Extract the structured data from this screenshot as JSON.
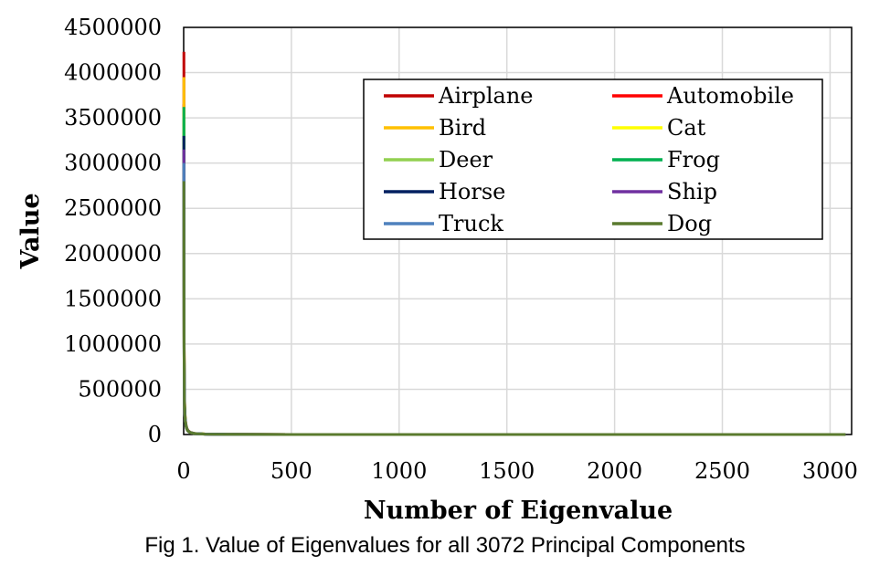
{
  "caption": "Fig 1. Value of Eigenvalues for all 3072 Principal Components",
  "chart_data": {
    "type": "line",
    "title": "",
    "xlabel": "Number of Eigenvalue",
    "ylabel": "Value",
    "xlim": [
      0,
      3100
    ],
    "ylim": [
      0,
      4500000
    ],
    "xticks": [
      0,
      500,
      1000,
      1500,
      2000,
      2500,
      3000
    ],
    "yticks": [
      0,
      500000,
      1000000,
      1500000,
      2000000,
      2500000,
      3000000,
      3500000,
      4000000,
      4500000
    ],
    "grid": true,
    "legend_position": "top-right",
    "x": [
      1,
      2,
      3,
      4,
      5,
      7,
      10,
      15,
      20,
      30,
      50,
      100,
      200,
      500,
      1000,
      2000,
      3072
    ],
    "series": [
      {
        "name": "Airplane",
        "color": "#C00000",
        "values": [
          4230000,
          1100000,
          620000,
          400000,
          300000,
          190000,
          120000,
          70000,
          45000,
          25000,
          12000,
          5000,
          2000,
          600,
          200,
          60,
          20
        ]
      },
      {
        "name": "Automobile",
        "color": "#FF0000",
        "values": [
          3650000,
          1000000,
          560000,
          370000,
          280000,
          180000,
          110000,
          65000,
          42000,
          23000,
          11000,
          4500,
          1800,
          550,
          180,
          55,
          18
        ]
      },
      {
        "name": "Bird",
        "color": "#FFC000",
        "values": [
          3950000,
          1050000,
          590000,
          390000,
          290000,
          185000,
          115000,
          68000,
          44000,
          24000,
          11500,
          4800,
          1900,
          580,
          190,
          58,
          19
        ]
      },
      {
        "name": "Cat",
        "color": "#FFFF00",
        "values": [
          3600000,
          980000,
          550000,
          360000,
          275000,
          175000,
          108000,
          63000,
          41000,
          22500,
          10800,
          4400,
          1750,
          540,
          175,
          54,
          17
        ]
      },
      {
        "name": "Deer",
        "color": "#92D050",
        "values": [
          3500000,
          950000,
          540000,
          350000,
          270000,
          170000,
          105000,
          62000,
          40000,
          22000,
          10500,
          4300,
          1700,
          520,
          170,
          52,
          17
        ]
      },
      {
        "name": "Frog",
        "color": "#00B050",
        "values": [
          3620000,
          990000,
          555000,
          365000,
          278000,
          178000,
          109000,
          64000,
          41500,
          22800,
          10900,
          4450,
          1780,
          545,
          178,
          55,
          18
        ]
      },
      {
        "name": "Horse",
        "color": "#002060",
        "values": [
          3300000,
          920000,
          520000,
          340000,
          260000,
          165000,
          102000,
          60000,
          39000,
          21500,
          10200,
          4200,
          1650,
          510,
          165,
          50,
          16
        ]
      },
      {
        "name": "Ship",
        "color": "#7030A0",
        "values": [
          3150000,
          900000,
          510000,
          330000,
          255000,
          160000,
          100000,
          59000,
          38000,
          21000,
          10000,
          4100,
          1600,
          500,
          160,
          49,
          16
        ]
      },
      {
        "name": "Truck",
        "color": "#4F81BD",
        "values": [
          3000000,
          880000,
          500000,
          325000,
          250000,
          158000,
          98000,
          58000,
          37500,
          20500,
          9800,
          4000,
          1580,
          490,
          158,
          48,
          15
        ]
      },
      {
        "name": "Dog",
        "color": "#5A7A2E",
        "values": [
          2800000,
          860000,
          490000,
          320000,
          245000,
          155000,
          96000,
          57000,
          37000,
          20000,
          9600,
          3900,
          1550,
          480,
          155,
          47,
          15
        ]
      }
    ]
  }
}
